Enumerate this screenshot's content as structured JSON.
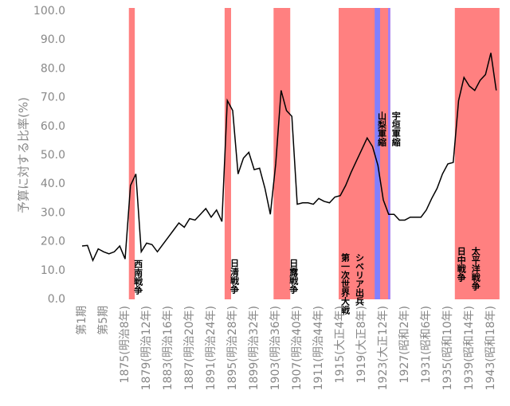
{
  "chart_data": {
    "type": "line",
    "y_label": "予算に対する比率(%)",
    "ylim": [
      0,
      100
    ],
    "yticks": [
      {
        "value": 0,
        "label": "0.0"
      },
      {
        "value": 10,
        "label": "10.0"
      },
      {
        "value": 20,
        "label": "20.0"
      },
      {
        "value": 30,
        "label": "30.0"
      },
      {
        "value": 40,
        "label": "40.0"
      },
      {
        "value": 50,
        "label": "50.0"
      },
      {
        "value": 60,
        "label": "60.0"
      },
      {
        "value": 70,
        "label": "70.0"
      },
      {
        "value": 80,
        "label": "80.0"
      },
      {
        "value": 90,
        "label": "90.0"
      },
      {
        "value": 100,
        "label": "100.0"
      }
    ],
    "categories": [
      "第1期",
      null,
      null,
      null,
      "第5期",
      null,
      null,
      null,
      "1875(明治8年)",
      null,
      null,
      null,
      "1879(明治12年)",
      null,
      null,
      null,
      "1883(明治16年)",
      null,
      null,
      null,
      "1887(明治20年)",
      null,
      null,
      null,
      "1891(明治24年)",
      null,
      null,
      null,
      "1895(明治28年)",
      null,
      null,
      null,
      "1899(明治32年)",
      null,
      null,
      null,
      "1903(明治36年)",
      null,
      null,
      null,
      "1907(明治40年)",
      null,
      null,
      null,
      "1911(明治44年)",
      null,
      null,
      null,
      "1915(大正4年)",
      null,
      null,
      null,
      "1919(大正8年)",
      null,
      null,
      null,
      "1923(大正12年)",
      null,
      null,
      null,
      "1927(昭和2年)",
      null,
      null,
      null,
      "1931(昭和6年)",
      null,
      null,
      null,
      "1935(昭和10年)",
      null,
      null,
      null,
      "1939(昭和14年)",
      null,
      null,
      null,
      "1943(昭和18年)",
      null
    ],
    "series": [
      {
        "name": "比率",
        "color": "#000000",
        "values": [
          18.5,
          18.7,
          13.5,
          17.5,
          16.5,
          15.8,
          16.5,
          18.5,
          14,
          39.5,
          43.5,
          16.5,
          19.5,
          19,
          16.5,
          19,
          21.5,
          24,
          26.5,
          25,
          28,
          27.5,
          29.5,
          31.5,
          28.5,
          31,
          27,
          69,
          65.5,
          43.5,
          49,
          51,
          45,
          45.5,
          38.5,
          29.5,
          47,
          72.5,
          65.5,
          63.5,
          33,
          33.5,
          33.5,
          33,
          35,
          34,
          33.5,
          35.5,
          36,
          39.5,
          44,
          48,
          52,
          56,
          53,
          46.5,
          34.5,
          29.5,
          29.5,
          27.5,
          27.5,
          28.5,
          28.5,
          28.5,
          31,
          35,
          38.5,
          43.5,
          47,
          47.5,
          69,
          77,
          74,
          72.5,
          76,
          78,
          85.5,
          72.5
        ]
      }
    ],
    "bands": [
      {
        "span": [
          8.7,
          9.8
        ],
        "color": "#ff8080",
        "labels": [
          "西南戦争"
        ]
      },
      {
        "span": [
          26.5,
          27.7
        ],
        "color": "#ff8080",
        "labels": [
          "日清戦争"
        ]
      },
      {
        "span": [
          35.6,
          38.7
        ],
        "color": "#ff8080",
        "labels": [
          "日露戦争"
        ]
      },
      {
        "span": [
          47.7,
          57.3
        ],
        "color": "#ff8080",
        "labels": [
          "第一次世界大戦",
          "シベリア出兵"
        ]
      },
      {
        "span": [
          54.4,
          55.4
        ],
        "color": "#8080ff",
        "labels": [
          "山梨軍縮"
        ]
      },
      {
        "span": [
          56.9,
          57.3
        ],
        "color": "#9b80ff",
        "labels": [
          "宇垣軍縮"
        ]
      },
      {
        "span": [
          69.3,
          77.6
        ],
        "color": "#ff8080",
        "labels": [
          "日中戦争",
          "太平洋戦争"
        ]
      }
    ]
  }
}
